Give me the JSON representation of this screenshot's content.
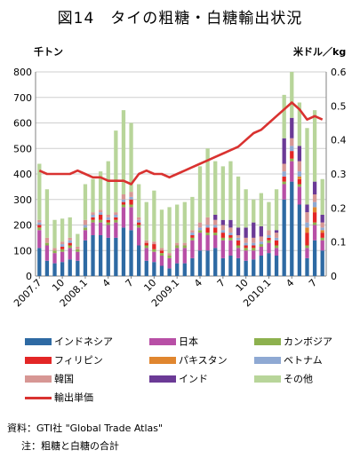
{
  "title": "図14　タイの粗糖・白糖輸出状況",
  "source": "資料：GTI社 \"Global Trade Atlas\"",
  "note": "注：粗糖と白糖の合計",
  "chart_data": {
    "type": "bar",
    "stacked": true,
    "ylabel_left": "千トン",
    "ylabel_right": "米ドル／kg",
    "ylim_left": [
      0,
      800
    ],
    "ylim_right": [
      0,
      0.6
    ],
    "yticks_left": [
      0,
      100,
      200,
      300,
      400,
      500,
      600,
      700,
      800
    ],
    "yticks_right": [
      "0",
      "0.1",
      "0.2",
      "0.3",
      "0.4",
      "0.5",
      "0.6"
    ],
    "x_tick_labels": [
      {
        "index": 0,
        "label": "2007.7"
      },
      {
        "index": 3,
        "label": "10"
      },
      {
        "index": 6,
        "label": "2008.1"
      },
      {
        "index": 9,
        "label": "4"
      },
      {
        "index": 12,
        "label": "7"
      },
      {
        "index": 15,
        "label": "10"
      },
      {
        "index": 18,
        "label": "2009.1"
      },
      {
        "index": 21,
        "label": "4"
      },
      {
        "index": 24,
        "label": "7"
      },
      {
        "index": 27,
        "label": "10"
      },
      {
        "index": 30,
        "label": "2010.1"
      },
      {
        "index": 33,
        "label": "4"
      },
      {
        "index": 36,
        "label": "7"
      }
    ],
    "categories": [
      "2007.7",
      "2007.8",
      "2007.9",
      "2007.10",
      "2007.11",
      "2007.12",
      "2008.1",
      "2008.2",
      "2008.3",
      "2008.4",
      "2008.5",
      "2008.6",
      "2008.7",
      "2008.8",
      "2008.9",
      "2008.10",
      "2008.11",
      "2008.12",
      "2009.1",
      "2009.2",
      "2009.3",
      "2009.4",
      "2009.5",
      "2009.6",
      "2009.7",
      "2009.8",
      "2009.9",
      "2009.10",
      "2009.11",
      "2009.12",
      "2010.1",
      "2010.2",
      "2010.3",
      "2010.4",
      "2010.5",
      "2010.6",
      "2010.7",
      "2010.8"
    ],
    "series": [
      {
        "name": "インドネシア",
        "color": "#2e6aa3",
        "values": [
          110,
          60,
          50,
          55,
          65,
          60,
          140,
          160,
          160,
          150,
          150,
          190,
          180,
          120,
          60,
          55,
          40,
          30,
          50,
          50,
          70,
          100,
          100,
          110,
          70,
          80,
          70,
          60,
          65,
          80,
          90,
          80,
          300,
          370,
          280,
          70,
          140,
          100
        ]
      },
      {
        "name": "日本",
        "color": "#b84fa6",
        "values": [
          70,
          60,
          40,
          40,
          45,
          35,
          40,
          50,
          50,
          50,
          60,
          80,
          90,
          70,
          50,
          40,
          40,
          40,
          60,
          60,
          70,
          70,
          60,
          50,
          70,
          60,
          40,
          40,
          35,
          35,
          40,
          30,
          60,
          80,
          70,
          40,
          60,
          40
        ]
      },
      {
        "name": "カンボジア",
        "color": "#8db14e",
        "values": [
          10,
          10,
          10,
          10,
          10,
          10,
          10,
          10,
          10,
          10,
          10,
          10,
          10,
          10,
          10,
          10,
          10,
          10,
          10,
          10,
          10,
          10,
          10,
          10,
          10,
          10,
          10,
          10,
          10,
          10,
          10,
          10,
          10,
          10,
          10,
          10,
          10,
          10
        ]
      },
      {
        "name": "フィリピン",
        "color": "#e32626",
        "values": [
          10,
          0,
          0,
          10,
          10,
          0,
          0,
          10,
          20,
          10,
          10,
          10,
          20,
          10,
          10,
          20,
          10,
          0,
          0,
          0,
          10,
          0,
          20,
          20,
          20,
          10,
          20,
          10,
          10,
          0,
          10,
          20,
          20,
          30,
          20,
          50,
          40,
          20
        ]
      },
      {
        "name": "パキスタン",
        "color": "#e0862f",
        "values": [
          0,
          0,
          0,
          0,
          0,
          0,
          0,
          0,
          0,
          0,
          0,
          0,
          0,
          0,
          0,
          0,
          0,
          0,
          0,
          0,
          0,
          0,
          0,
          0,
          0,
          0,
          0,
          0,
          0,
          0,
          0,
          0,
          0,
          0,
          10,
          20,
          20,
          10
        ]
      },
      {
        "name": "ベトナム",
        "color": "#8fa9d3",
        "values": [
          10,
          0,
          0,
          10,
          10,
          0,
          10,
          10,
          10,
          10,
          10,
          10,
          10,
          10,
          0,
          0,
          0,
          0,
          0,
          0,
          10,
          10,
          10,
          10,
          10,
          10,
          10,
          10,
          10,
          10,
          10,
          10,
          20,
          20,
          20,
          20,
          20,
          10
        ]
      },
      {
        "name": "韓国",
        "color": "#d79794",
        "values": [
          10,
          20,
          10,
          10,
          10,
          10,
          20,
          10,
          10,
          10,
          10,
          20,
          20,
          10,
          10,
          10,
          10,
          10,
          10,
          10,
          10,
          20,
          30,
          20,
          20,
          20,
          10,
          20,
          20,
          20,
          20,
          20,
          30,
          30,
          40,
          40,
          30,
          20
        ]
      },
      {
        "name": "インド",
        "color": "#6b3a96",
        "values": [
          0,
          0,
          0,
          0,
          0,
          0,
          0,
          0,
          0,
          0,
          0,
          0,
          0,
          0,
          0,
          0,
          0,
          0,
          0,
          0,
          0,
          0,
          0,
          20,
          20,
          30,
          30,
          40,
          60,
          40,
          0,
          10,
          100,
          80,
          60,
          30,
          50,
          30
        ]
      },
      {
        "name": "その他",
        "color": "#b8d59a",
        "values": [
          220,
          190,
          110,
          90,
          80,
          50,
          140,
          130,
          150,
          210,
          320,
          330,
          270,
          130,
          150,
          200,
          150,
          180,
          150,
          160,
          130,
          220,
          270,
          210,
          210,
          230,
          200,
          150,
          90,
          130,
          110,
          160,
          170,
          180,
          170,
          300,
          280,
          140
        ]
      }
    ],
    "line_series": {
      "name": "輸出単価",
      "color": "#d93230",
      "axis": "right",
      "values": [
        0.31,
        0.3,
        0.3,
        0.3,
        0.3,
        0.31,
        0.3,
        0.29,
        0.29,
        0.28,
        0.28,
        0.28,
        0.27,
        0.3,
        0.31,
        0.3,
        0.3,
        0.29,
        0.3,
        0.31,
        0.32,
        0.33,
        0.34,
        0.35,
        0.36,
        0.37,
        0.38,
        0.4,
        0.42,
        0.43,
        0.45,
        0.47,
        0.49,
        0.51,
        0.49,
        0.46,
        0.47,
        0.46
      ]
    },
    "legend_position": "bottom"
  }
}
